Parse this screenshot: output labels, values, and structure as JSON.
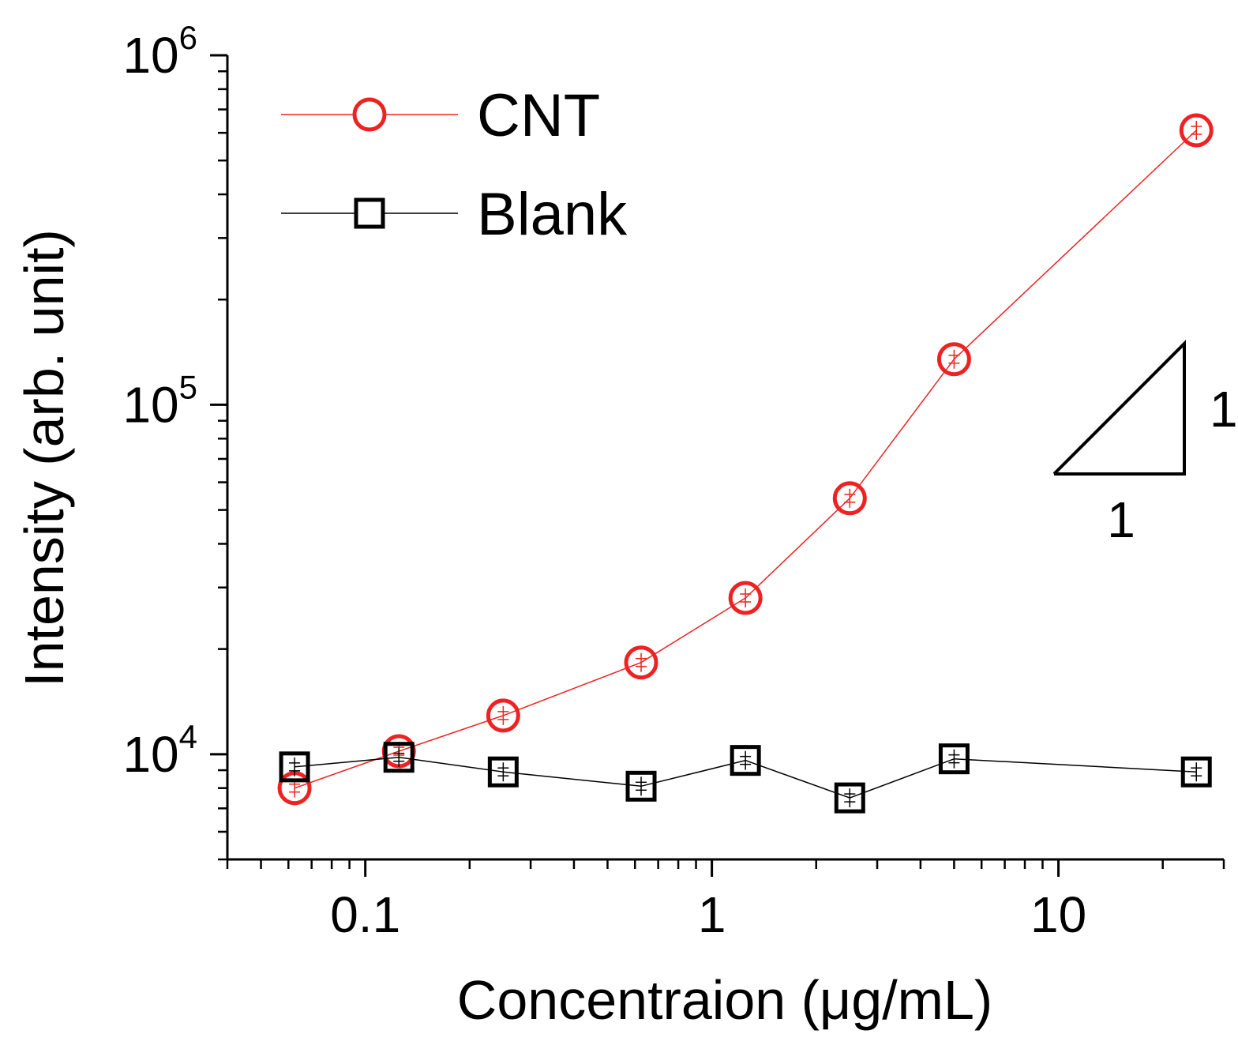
{
  "chart_data": {
    "type": "line",
    "title": "",
    "xlabel": "Concentraion (μg/mL)",
    "ylabel": "Intensity (arb. unit)",
    "xscale": "log",
    "yscale": "log",
    "xlim": [
      0.04,
      30
    ],
    "ylim": [
      5000,
      1000000
    ],
    "x_ticks": [
      {
        "value": 0.1,
        "label": "0.1"
      },
      {
        "value": 1,
        "label": "1"
      },
      {
        "value": 10,
        "label": "10"
      }
    ],
    "y_ticks": [
      {
        "value": 10000,
        "base": "10",
        "exp": "4"
      },
      {
        "value": 100000,
        "base": "10",
        "exp": "5"
      },
      {
        "value": 1000000,
        "base": "10",
        "exp": "6"
      }
    ],
    "legend_position": "top-left",
    "series": [
      {
        "name": "CNT",
        "color": "#ee2222",
        "marker": "circle",
        "x": [
          0.0625,
          0.125,
          0.25,
          0.625,
          1.25,
          2.5,
          5,
          25
        ],
        "y": [
          8000,
          10200,
          12900,
          18300,
          28000,
          54000,
          135000,
          610000
        ]
      },
      {
        "name": "Blank",
        "color": "#000000",
        "marker": "square",
        "x": [
          0.0625,
          0.125,
          0.25,
          0.625,
          1.25,
          2.5,
          5,
          25
        ],
        "y": [
          9200,
          9800,
          8900,
          8100,
          9600,
          7500,
          9700,
          8900
        ]
      }
    ],
    "annotations": [
      {
        "type": "slope-triangle",
        "horizontal_label": "1",
        "vertical_label": "1"
      }
    ]
  }
}
